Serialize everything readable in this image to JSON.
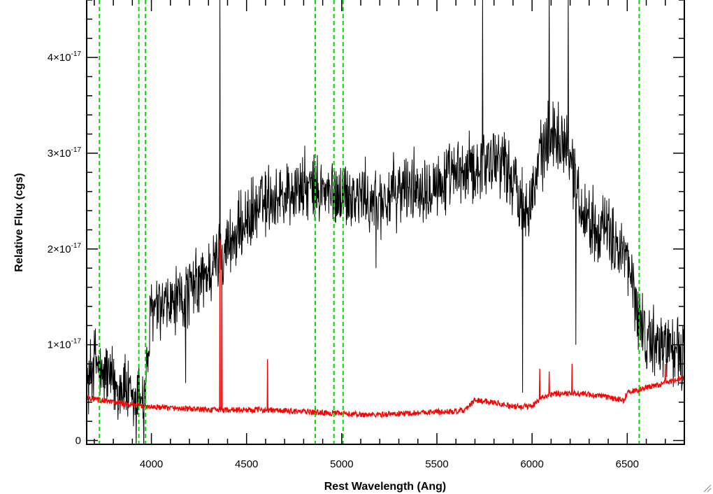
{
  "chart_data": {
    "type": "line",
    "title": "",
    "xlabel": "Rest Wavelength (Ang)",
    "ylabel": "Relative Flux (cgs)",
    "xlim": [
      3660,
      6800
    ],
    "ylim": [
      -4e-19,
      4.6e-17
    ],
    "x_ticks": [
      4000,
      4500,
      5000,
      5500,
      6000,
      6500
    ],
    "x_tick_labels": [
      "4000",
      "4500",
      "5000",
      "5500",
      "6000",
      "6500"
    ],
    "y_ticks": [
      0,
      1e-17,
      2e-17,
      3e-17,
      4e-17
    ],
    "y_tick_labels": [
      {
        "mantissa": "0",
        "exponent": ""
      },
      {
        "mantissa": "1×10",
        "exponent": "-17"
      },
      {
        "mantissa": "2×10",
        "exponent": "-17"
      },
      {
        "mantissa": "3×10",
        "exponent": "-17"
      },
      {
        "mantissa": "4×10",
        "exponent": "-17"
      }
    ],
    "grid": false,
    "series": [
      {
        "color": "#000000",
        "values_e17": [
          [
            3660,
            0.55
          ],
          [
            3680,
            0.7
          ],
          [
            3700,
            0.85
          ],
          [
            3720,
            0.8
          ],
          [
            3740,
            0.6
          ],
          [
            3760,
            0.75
          ],
          [
            3780,
            0.65
          ],
          [
            3800,
            0.6
          ],
          [
            3820,
            0.55
          ],
          [
            3840,
            0.55
          ],
          [
            3860,
            0.6
          ],
          [
            3880,
            0.45
          ],
          [
            3900,
            0.35
          ],
          [
            3920,
            0.4
          ],
          [
            3940,
            0.55
          ],
          [
            3960,
            0.4
          ],
          [
            3980,
            0.85
          ],
          [
            4000,
            1.35
          ],
          [
            4050,
            1.35
          ],
          [
            4100,
            1.4
          ],
          [
            4150,
            1.45
          ],
          [
            4200,
            1.55
          ],
          [
            4250,
            1.65
          ],
          [
            4300,
            1.75
          ],
          [
            4350,
            1.9
          ],
          [
            4400,
            2.05
          ],
          [
            4450,
            2.15
          ],
          [
            4500,
            2.3
          ],
          [
            4550,
            2.4
          ],
          [
            4600,
            2.5
          ],
          [
            4650,
            2.55
          ],
          [
            4700,
            2.55
          ],
          [
            4750,
            2.6
          ],
          [
            4800,
            2.65
          ],
          [
            4850,
            2.6
          ],
          [
            4900,
            2.6
          ],
          [
            4950,
            2.55
          ],
          [
            5000,
            2.6
          ],
          [
            5050,
            2.55
          ],
          [
            5100,
            2.55
          ],
          [
            5150,
            2.5
          ],
          [
            5200,
            2.5
          ],
          [
            5250,
            2.55
          ],
          [
            5300,
            2.6
          ],
          [
            5350,
            2.65
          ],
          [
            5400,
            2.65
          ],
          [
            5450,
            2.7
          ],
          [
            5500,
            2.7
          ],
          [
            5550,
            2.7
          ],
          [
            5600,
            2.75
          ],
          [
            5650,
            2.8
          ],
          [
            5700,
            2.85
          ],
          [
            5750,
            2.9
          ],
          [
            5800,
            2.95
          ],
          [
            5850,
            2.95
          ],
          [
            5900,
            2.7
          ],
          [
            5950,
            2.5
          ],
          [
            6000,
            2.55
          ],
          [
            6050,
            3.0
          ],
          [
            6100,
            3.2
          ],
          [
            6150,
            3.2
          ],
          [
            6200,
            3.0
          ],
          [
            6250,
            2.5
          ],
          [
            6300,
            2.3
          ],
          [
            6350,
            2.25
          ],
          [
            6400,
            2.15
          ],
          [
            6450,
            2.05
          ],
          [
            6500,
            1.85
          ],
          [
            6550,
            1.4
          ],
          [
            6600,
            1.05
          ],
          [
            6650,
            1.0
          ],
          [
            6700,
            1.0
          ],
          [
            6750,
            0.95
          ],
          [
            6780,
            0.9
          ]
        ],
        "noise_amplitude_e17": 0.32,
        "spikes_e17": [
          [
            4360,
            4.7
          ],
          [
            4365,
            -0.1
          ],
          [
            5740,
            4.7
          ],
          [
            6090,
            4.7
          ],
          [
            6190,
            4.7
          ],
          [
            5950,
            0.5
          ],
          [
            5180,
            1.8
          ],
          [
            6230,
            1.0
          ],
          [
            4180,
            0.6
          ],
          [
            3960,
            -0.1
          ],
          [
            3920,
            -0.1
          ]
        ]
      },
      {
        "color": "#ff0000",
        "values_e17": [
          [
            3660,
            0.45
          ],
          [
            3700,
            0.43
          ],
          [
            3800,
            0.4
          ],
          [
            3900,
            0.37
          ],
          [
            4000,
            0.35
          ],
          [
            4100,
            0.34
          ],
          [
            4200,
            0.33
          ],
          [
            4300,
            0.32
          ],
          [
            4400,
            0.32
          ],
          [
            4500,
            0.32
          ],
          [
            4600,
            0.32
          ],
          [
            4700,
            0.31
          ],
          [
            4800,
            0.3
          ],
          [
            4900,
            0.29
          ],
          [
            5000,
            0.28
          ],
          [
            5100,
            0.27
          ],
          [
            5200,
            0.27
          ],
          [
            5300,
            0.28
          ],
          [
            5400,
            0.29
          ],
          [
            5500,
            0.3
          ],
          [
            5600,
            0.3
          ],
          [
            5650,
            0.32
          ],
          [
            5700,
            0.42
          ],
          [
            5800,
            0.4
          ],
          [
            5900,
            0.35
          ],
          [
            6000,
            0.36
          ],
          [
            6050,
            0.45
          ],
          [
            6100,
            0.48
          ],
          [
            6200,
            0.5
          ],
          [
            6300,
            0.48
          ],
          [
            6400,
            0.45
          ],
          [
            6480,
            0.42
          ],
          [
            6500,
            0.5
          ],
          [
            6600,
            0.55
          ],
          [
            6700,
            0.6
          ],
          [
            6780,
            0.65
          ]
        ],
        "noise_amplitude_e17": 0.03,
        "spikes_e17": [
          [
            4360,
            2.1
          ],
          [
            4370,
            2.0
          ],
          [
            4610,
            0.85
          ],
          [
            4925,
            0.68
          ],
          [
            5665,
            0.68
          ],
          [
            6040,
            0.75
          ],
          [
            6210,
            0.8
          ],
          [
            6090,
            0.72
          ],
          [
            6700,
            0.8
          ]
        ]
      }
    ],
    "reference_lines": {
      "color": "#00dd00",
      "style": "dashed",
      "x": [
        3727,
        3934,
        3969,
        4861,
        4959,
        5007,
        6563
      ]
    }
  }
}
